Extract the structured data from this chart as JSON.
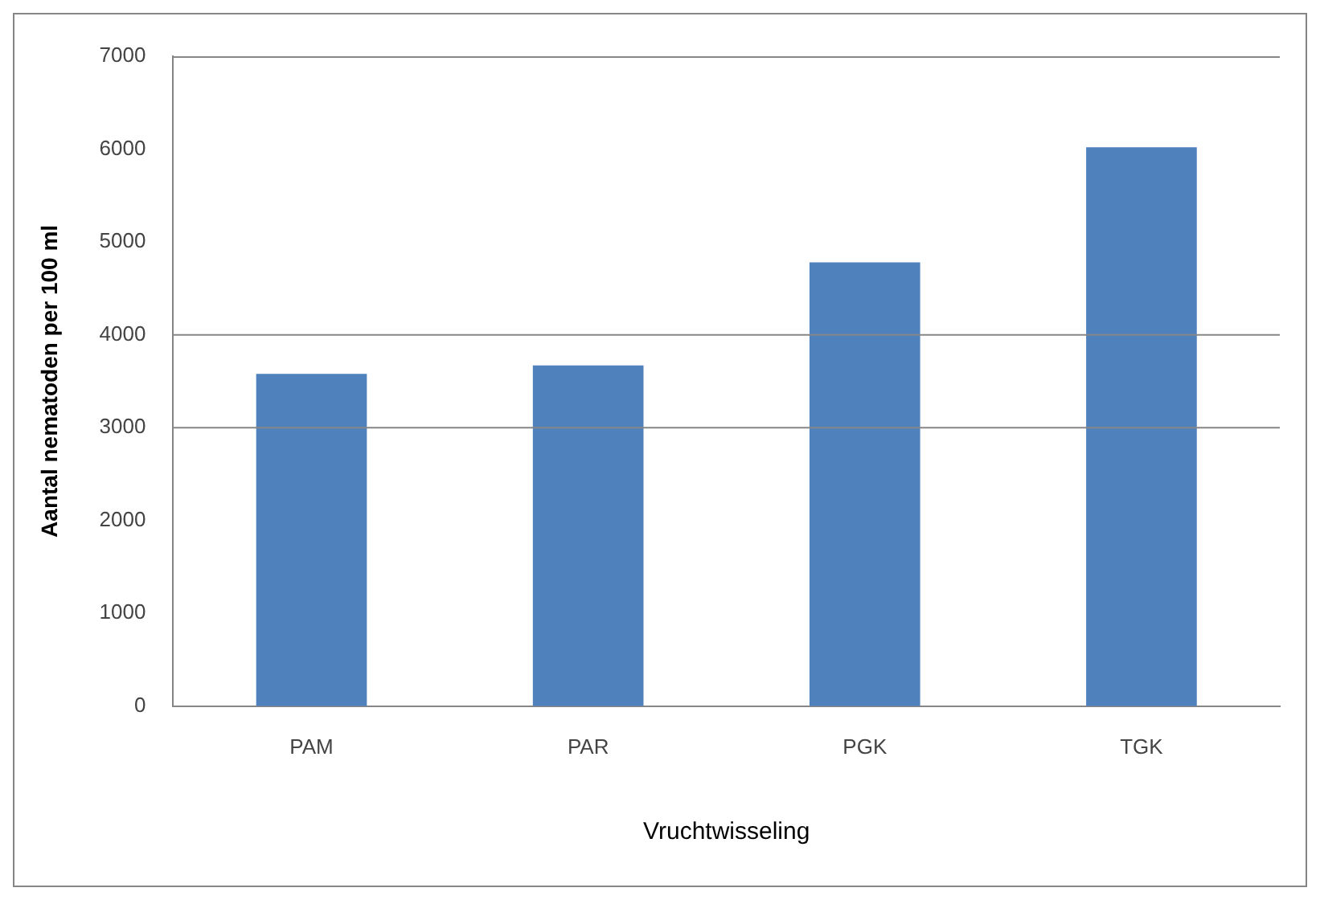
{
  "chart_data": {
    "type": "bar",
    "xlabel": "Vruchtwisseling",
    "ylabel": "Aantal nematoden per 100 ml",
    "categories": [
      "PAM",
      "PAR",
      "PGK",
      "TGK"
    ],
    "values": [
      3580,
      3670,
      4780,
      6020
    ],
    "color": "#4f81bd",
    "ylim": [
      0,
      7000
    ],
    "yticks": [
      0,
      1000,
      2000,
      3000,
      4000,
      5000,
      6000,
      7000
    ],
    "grid": false,
    "legend": false,
    "ref_lines": [
      {
        "axis": "y",
        "value": 3000,
        "color": "#868686"
      },
      {
        "axis": "y",
        "value": 4000,
        "color": "#868686"
      }
    ]
  }
}
